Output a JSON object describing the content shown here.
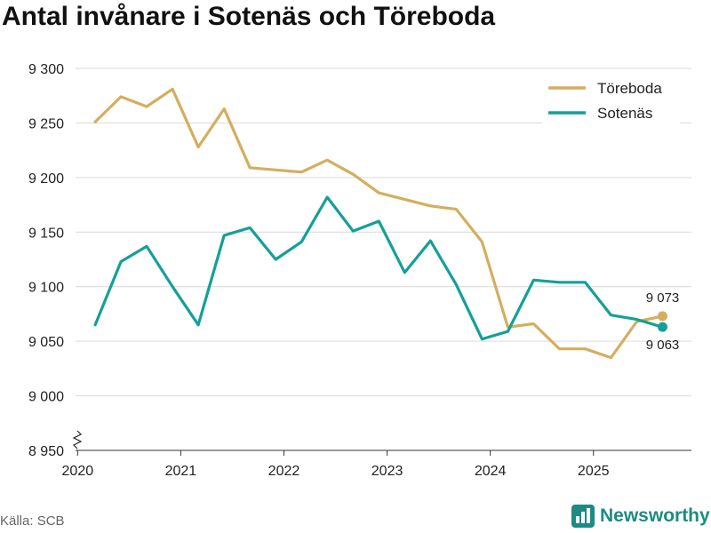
{
  "chart_data": {
    "type": "line",
    "title": "Antal invånare i Sotenäs och Töreboda",
    "xlabel": "",
    "ylabel": "",
    "ylim": [
      8950,
      9300
    ],
    "yticks": [
      8950,
      9000,
      9050,
      9100,
      9150,
      9200,
      9250,
      9300
    ],
    "ytick_labels": [
      "8 950",
      "9 000",
      "9 050",
      "9 100",
      "9 150",
      "9 200",
      "9 250",
      "9 300"
    ],
    "xlim": [
      2019.98,
      2025.95
    ],
    "xticks": [
      2020,
      2021,
      2022,
      2023,
      2024,
      2025
    ],
    "xtick_labels": [
      "2020",
      "2021",
      "2022",
      "2023",
      "2024",
      "2025"
    ],
    "axis_break": true,
    "grid": true,
    "legend_position": "top-right",
    "x": [
      2020.17,
      2020.42,
      2020.67,
      2020.92,
      2021.17,
      2021.42,
      2021.67,
      2021.92,
      2022.17,
      2022.42,
      2022.67,
      2022.92,
      2023.17,
      2023.42,
      2023.67,
      2023.92,
      2024.17,
      2024.42,
      2024.67,
      2024.92,
      2025.17,
      2025.42,
      2025.67
    ],
    "series": [
      {
        "name": "Töreboda",
        "color": "#d4ae5e",
        "values": [
          9251,
          9274,
          9265,
          9281,
          9228,
          9263,
          9209,
          9207,
          9205,
          9216,
          9203,
          9186,
          9180,
          9174,
          9171,
          9141,
          9063,
          9066,
          9043,
          9043,
          9035,
          9068,
          9073
        ],
        "end_label": "9 073"
      },
      {
        "name": "Sotenäs",
        "color": "#13a098",
        "values": [
          9065,
          9123,
          9137,
          9100,
          9065,
          9147,
          9154,
          9125,
          9141,
          9182,
          9151,
          9160,
          9113,
          9142,
          9102,
          9052,
          9059,
          9106,
          9104,
          9104,
          9074,
          9070,
          9063
        ],
        "end_label": "9 063"
      }
    ]
  },
  "footer": {
    "source": "Källa: SCB",
    "brand": "Newsworthy"
  },
  "icons": {
    "brand_logo": "bar-chart-logo-icon"
  }
}
